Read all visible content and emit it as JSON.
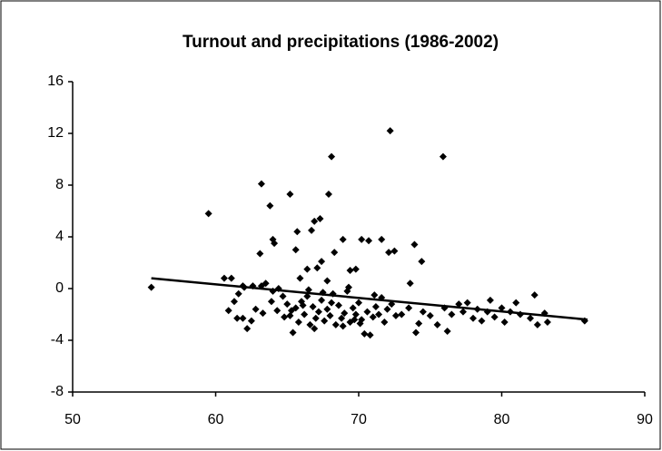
{
  "chart_data": {
    "type": "scatter",
    "title": "Turnout and precipitations (1986-2002)",
    "x": [
      55.5,
      59.5,
      63.2,
      63.8,
      65.2,
      64,
      64.1,
      63.1,
      65.7,
      65.6,
      66.7,
      66.9,
      67.3,
      67.9,
      68.1,
      72.2,
      75.9,
      70.2,
      70.7,
      71.6,
      72.1,
      72.5,
      73.9,
      74.4,
      73.6,
      68.9,
      68.3,
      69.4,
      69.8,
      67.4,
      67.1,
      66.4,
      67.8,
      65.9,
      64.4,
      64,
      61.9,
      60.6,
      61.1,
      61.6,
      62,
      62.6,
      63.2,
      60.9,
      61.3,
      61.5,
      61.9,
      62.2,
      62.5,
      62.8,
      63.3,
      63.5,
      63.9,
      64.3,
      64.7,
      73,
      73.5,
      74,
      74.2,
      74.5,
      75,
      75.5,
      76,
      76.2,
      76.5,
      77,
      77.3,
      77.6,
      78,
      78.3,
      78.6,
      79,
      79.2,
      79.5,
      80,
      80.2,
      80.6,
      81,
      81.3,
      82,
      82.3,
      82.5,
      83,
      83.2,
      85.8,
      65,
      65.2,
      65.4,
      65.6,
      65.8,
      66,
      66.2,
      66.4,
      66.6,
      66.8,
      67,
      67.2,
      67.4,
      67.6,
      67.8,
      68,
      68.2,
      68.4,
      68.6,
      68.8,
      69,
      69.2,
      69.4,
      69.6,
      69.8,
      70,
      70.2,
      70.4,
      70.6,
      70.8,
      71,
      71.2,
      71.4,
      71.6,
      71.8,
      72,
      72.3,
      72.6,
      66.5,
      67.5,
      69.3,
      71.1,
      65.3,
      66.1,
      68.9,
      70.1,
      64.8,
      66.9,
      68.1,
      69.7
    ],
    "values": [
      0.1,
      5.8,
      8.1,
      6.4,
      7.3,
      3.8,
      3.5,
      2.7,
      4.4,
      3,
      4.5,
      5.2,
      5.4,
      7.3,
      10.2,
      12.2,
      10.2,
      3.8,
      3.7,
      3.8,
      2.8,
      2.9,
      3.4,
      2.1,
      0.4,
      3.8,
      2.8,
      1.4,
      1.5,
      2.1,
      1.6,
      1.5,
      0.6,
      0.8,
      0,
      -0.2,
      0.2,
      0.8,
      0.8,
      -0.4,
      0.1,
      0.2,
      0.2,
      -1.7,
      -1,
      -2.3,
      -2.3,
      -3.1,
      -2.5,
      -1.6,
      -1.9,
      0.4,
      -1,
      -1.7,
      -0.6,
      -2,
      -1.5,
      -3.4,
      -2.7,
      -1.8,
      -2.1,
      -2.8,
      -1.5,
      -3.3,
      -2,
      -1.2,
      -1.8,
      -1.1,
      -2.3,
      -1.6,
      -2.5,
      -1.8,
      -0.9,
      -2.2,
      -1.5,
      -2.6,
      -1.8,
      -1.1,
      -2,
      -2.3,
      -0.5,
      -2.8,
      -1.9,
      -2.6,
      -2.5,
      -1.2,
      -2.1,
      -3.4,
      -1.5,
      -2.6,
      -1,
      -2,
      -0.6,
      -2.8,
      -1.4,
      -2.3,
      -1.8,
      -0.9,
      -2.5,
      -1.6,
      -2.1,
      -0.4,
      -2.8,
      -1.3,
      -2.3,
      -1.9,
      -0.2,
      -2.6,
      -1.5,
      -2,
      -1.1,
      -2.4,
      -3.5,
      -1.8,
      -3.6,
      -2.2,
      -1.4,
      -2,
      -0.7,
      -2.6,
      -1.6,
      -1.2,
      -2.1,
      -0.1,
      -0.3,
      0.1,
      -0.5,
      -1.7,
      -1.3,
      -2.9,
      -2.7,
      -2.2,
      -3.1,
      -1.1,
      -2.4
    ],
    "color": "#000000",
    "trendline": {
      "x": [
        55.5,
        86
      ],
      "values": [
        0.8,
        -2.4
      ]
    },
    "xlim": [
      50,
      90
    ],
    "ylim": [
      -8,
      16
    ],
    "xticks": [
      50,
      60,
      70,
      80,
      90
    ],
    "yticks": [
      -8,
      -4,
      0,
      4,
      8,
      12,
      16
    ],
    "grid": false
  }
}
